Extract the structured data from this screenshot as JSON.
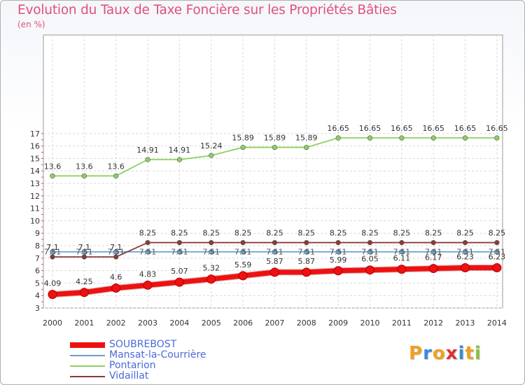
{
  "chart_data": {
    "type": "line",
    "title": "Evolution du Taux de Taxe Foncière sur les Propriétés Bâties",
    "unit_label": "(en %)",
    "xlabel": "",
    "ylabel": "(en %)",
    "ylim": [
      3,
      17
    ],
    "yticks": [
      3,
      4,
      5,
      6,
      7,
      8,
      9,
      10,
      11,
      12,
      13,
      14,
      15,
      16,
      17
    ],
    "grid": true,
    "categories": [
      "2000",
      "2001",
      "2002",
      "2003",
      "2004",
      "2005",
      "2006",
      "2007",
      "2008",
      "2009",
      "2010",
      "2011",
      "2012",
      "2013",
      "2014"
    ],
    "series": [
      {
        "name": "SOUBREBOST",
        "color": "#ee1111",
        "emphasis": true,
        "values": [
          4.09,
          4.25,
          4.6,
          4.83,
          5.07,
          5.32,
          5.59,
          5.87,
          5.87,
          5.99,
          6.05,
          6.11,
          6.17,
          6.23,
          6.23
        ],
        "labels": [
          "4.09",
          "4.25",
          "4.6",
          "4.83",
          "5.07",
          "5.32",
          "5.59",
          "5.87",
          "5.87",
          "5.99",
          "6.05",
          "6.11",
          "6.17",
          "6.23",
          "6.23"
        ]
      },
      {
        "name": "Mansat-la-Courrière",
        "color": "#6a9fd0",
        "emphasis": false,
        "values": [
          7.51,
          7.51,
          7.51,
          7.51,
          7.51,
          7.51,
          7.51,
          7.51,
          7.51,
          7.51,
          7.51,
          7.51,
          7.51,
          7.51,
          7.51
        ],
        "labels": [
          "7.51",
          "7.51",
          "7.51",
          "7.51",
          "7.51",
          "7.51",
          "7.51",
          "7.51",
          "7.51",
          "7.51",
          "7.51",
          "7.51",
          "7.51",
          "7.51",
          "7.51"
        ]
      },
      {
        "name": "Pontarion",
        "color": "#8fd060",
        "emphasis": false,
        "values": [
          13.6,
          13.6,
          13.6,
          14.91,
          14.91,
          15.24,
          15.89,
          15.89,
          15.89,
          16.65,
          16.65,
          16.65,
          16.65,
          16.65,
          16.65
        ],
        "labels": [
          "13.6",
          "13.6",
          "13.6",
          "14.91",
          "14.91",
          "15.24",
          "15.89",
          "15.89",
          "15.89",
          "16.65",
          "16.65",
          "16.65",
          "16.65",
          "16.65",
          "16.65"
        ]
      },
      {
        "name": "Vidaillat",
        "color": "#8b3a3a",
        "emphasis": false,
        "values": [
          7.1,
          7.1,
          7.1,
          8.25,
          8.25,
          8.25,
          8.25,
          8.25,
          8.25,
          8.25,
          8.25,
          8.25,
          8.25,
          8.25,
          8.25
        ],
        "labels": [
          "7.1",
          "7.1",
          "7.1",
          "8.25",
          "8.25",
          "8.25",
          "8.25",
          "8.25",
          "8.25",
          "8.25",
          "8.25",
          "8.25",
          "8.25",
          "8.25",
          "8.25"
        ]
      }
    ]
  },
  "logo": {
    "text": "Proxiti",
    "letters": [
      {
        "ch": "P",
        "color": "#f0a020"
      },
      {
        "ch": "r",
        "color": "#3a8ad8"
      },
      {
        "ch": "o",
        "color": "#f0a020"
      },
      {
        "ch": "x",
        "color": "#e03030"
      },
      {
        "ch": "i",
        "color": "#3a8ad8"
      },
      {
        "ch": "t",
        "color": "#f0a020"
      },
      {
        "ch": "i",
        "color": "#8ac040"
      }
    ]
  }
}
